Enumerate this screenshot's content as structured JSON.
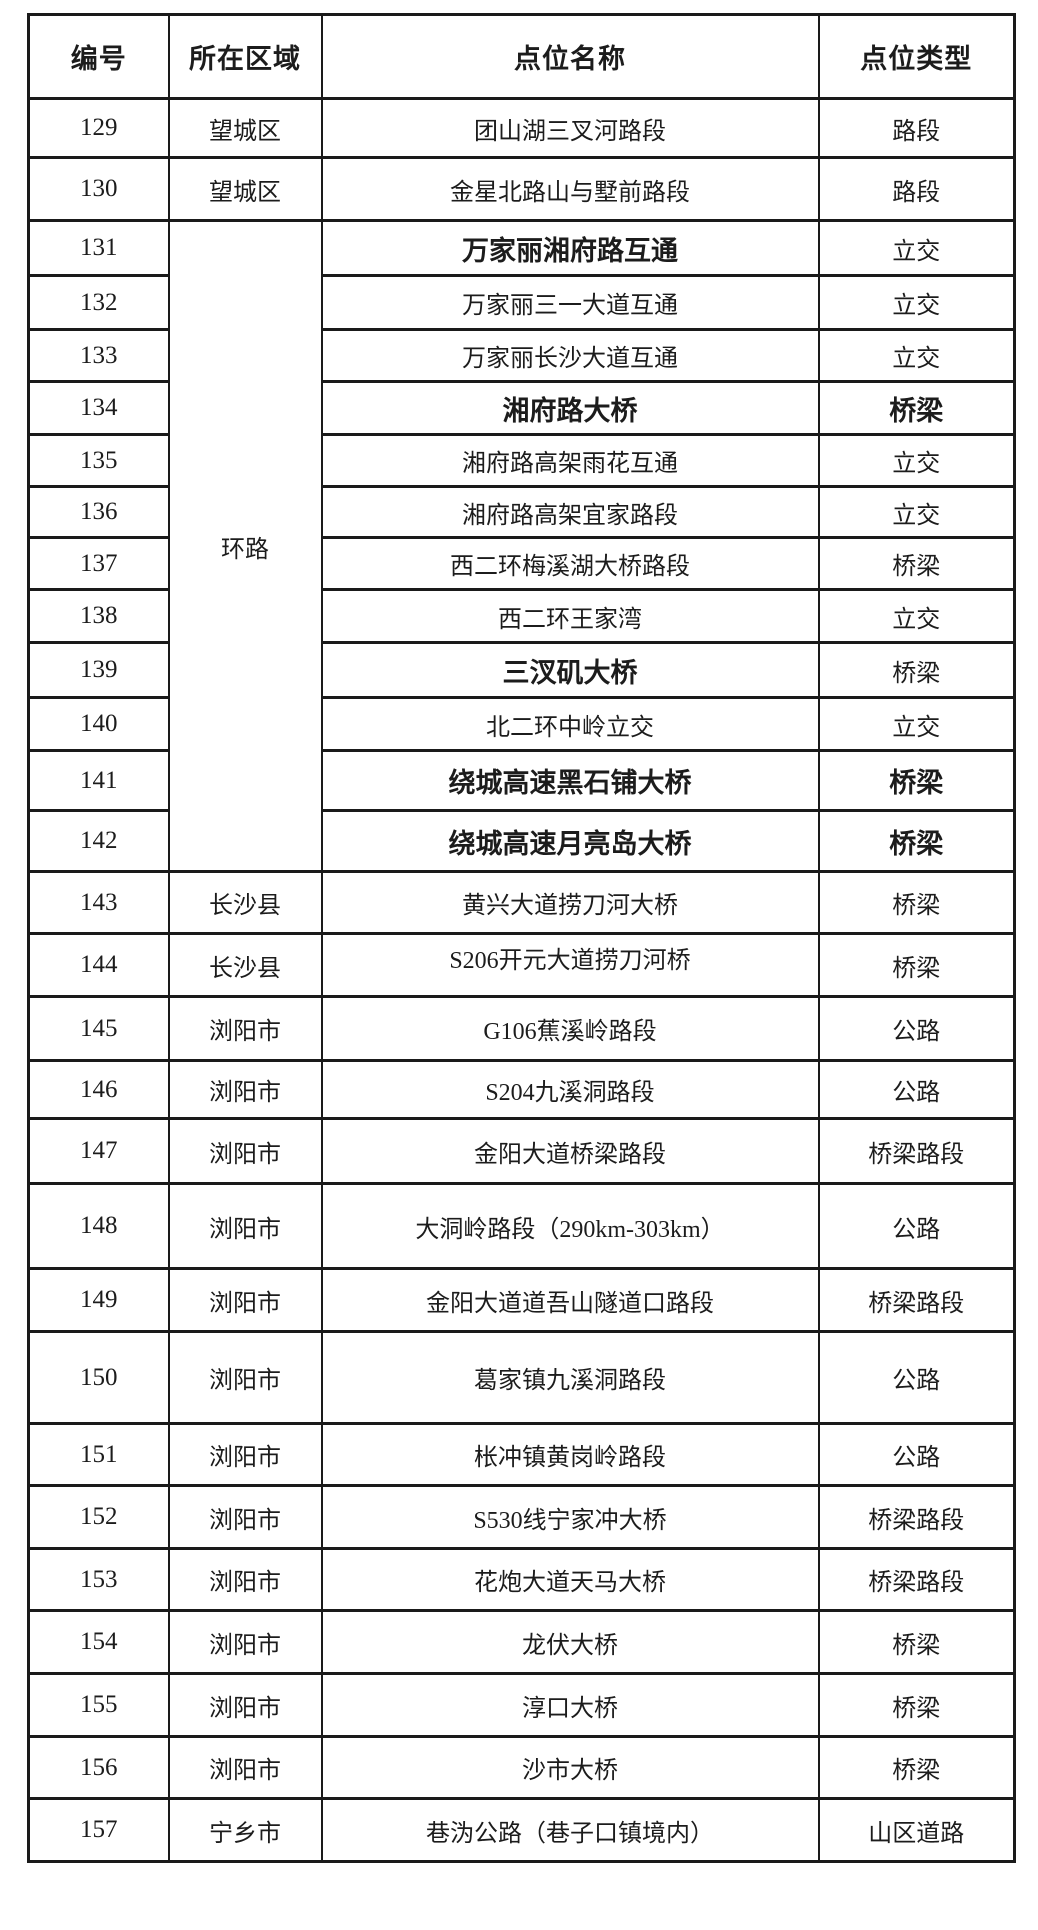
{
  "table": {
    "headers": [
      "编号",
      "所在区域",
      "点位名称",
      "点位类型"
    ],
    "rows": [
      {
        "id": "129",
        "region": "望城区",
        "name": "团山湖三叉河路段",
        "type": "路段"
      },
      {
        "id": "130",
        "region": "望城区",
        "name": "金星北路山与墅前路段",
        "type": "路段"
      },
      {
        "id": "131",
        "region": "环路",
        "region_rowspan": 12,
        "name": "万家丽湘府路互通",
        "type": "立交",
        "name_bold": true
      },
      {
        "id": "132",
        "name": "万家丽三一大道互通",
        "type": "立交"
      },
      {
        "id": "133",
        "name": "万家丽长沙大道互通",
        "type": "立交"
      },
      {
        "id": "134",
        "name": "湘府路大桥",
        "type": "桥梁",
        "name_bold": true,
        "type_bold": true
      },
      {
        "id": "135",
        "name": "湘府路高架雨花互通",
        "type": "立交"
      },
      {
        "id": "136",
        "name": "湘府路高架宜家路段",
        "type": "立交"
      },
      {
        "id": "137",
        "name": "西二环梅溪湖大桥路段",
        "type": "桥梁"
      },
      {
        "id": "138",
        "name": "西二环王家湾",
        "type": "立交"
      },
      {
        "id": "139",
        "name": "三汊矶大桥",
        "type": "桥梁",
        "name_bold": true
      },
      {
        "id": "140",
        "name": "北二环中岭立交",
        "type": "立交"
      },
      {
        "id": "141",
        "name": "绕城高速黑石铺大桥",
        "type": "桥梁",
        "name_bold": true,
        "type_bold": true
      },
      {
        "id": "142",
        "name": "绕城高速月亮岛大桥",
        "type": "桥梁",
        "name_bold": true,
        "type_bold": true
      },
      {
        "id": "143",
        "region": "长沙县",
        "name": "黄兴大道捞刀河大桥",
        "type": "桥梁"
      },
      {
        "id": "144",
        "region": "长沙县",
        "name": "S206开元大道捞刀河桥",
        "type": "桥梁"
      },
      {
        "id": "145",
        "region": "浏阳市",
        "name": "G106蕉溪岭路段",
        "type": "公路"
      },
      {
        "id": "146",
        "region": "浏阳市",
        "name": "S204九溪洞路段",
        "type": "公路"
      },
      {
        "id": "147",
        "region": "浏阳市",
        "name": "金阳大道桥梁路段",
        "type": "桥梁路段"
      },
      {
        "id": "148",
        "region": "浏阳市",
        "name": "大洞岭路段（290km-303km）",
        "type": "公路"
      },
      {
        "id": "149",
        "region": "浏阳市",
        "name": "金阳大道道吾山隧道口路段",
        "type": "桥梁路段"
      },
      {
        "id": "150",
        "region": "浏阳市",
        "name": "葛家镇九溪洞路段",
        "type": "公路"
      },
      {
        "id": "151",
        "region": "浏阳市",
        "name": "枨冲镇黄岗岭路段",
        "type": "公路"
      },
      {
        "id": "152",
        "region": "浏阳市",
        "name": "S530线宁家冲大桥",
        "type": "桥梁路段"
      },
      {
        "id": "153",
        "region": "浏阳市",
        "name": "花炮大道天马大桥",
        "type": "桥梁路段"
      },
      {
        "id": "154",
        "region": "浏阳市",
        "name": "龙伏大桥",
        "type": "桥梁"
      },
      {
        "id": "155",
        "region": "浏阳市",
        "name": "淳口大桥",
        "type": "桥梁"
      },
      {
        "id": "156",
        "region": "浏阳市",
        "name": "沙市大桥",
        "type": "桥梁"
      },
      {
        "id": "157",
        "region": "宁乡市",
        "name": "巷沩公路（巷子口镇境内）",
        "type": "山区道路"
      }
    ]
  }
}
